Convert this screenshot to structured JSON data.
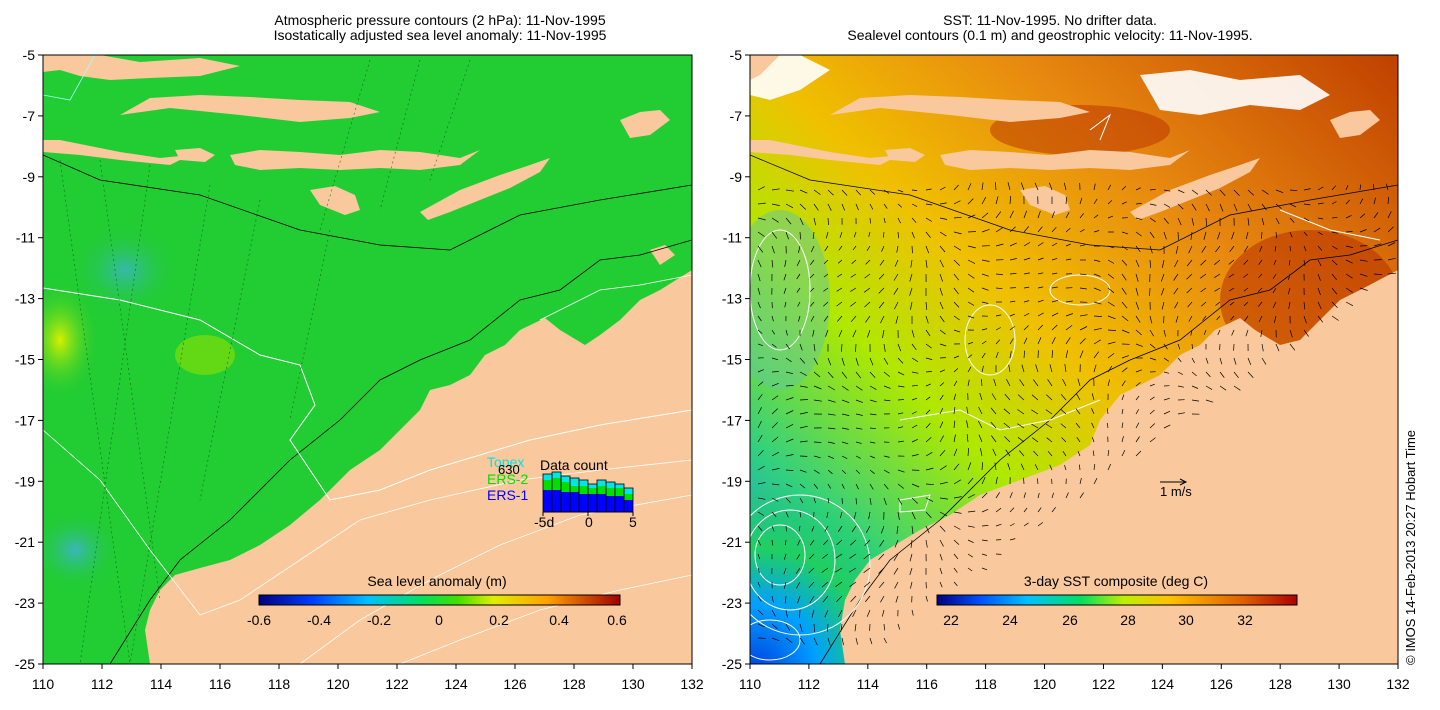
{
  "left_panel": {
    "title_line1": "Atmospheric pressure contours (2 hPa): 11-Nov-1995",
    "title_line2": "Isostatically adjusted sea level anomaly: 11-Nov-1995",
    "colorbar": {
      "title": "Sea level anomaly (m)",
      "ticks": [
        "-0.6",
        "-0.4",
        "-0.2",
        "0",
        "0.2",
        "0.4",
        "0.6"
      ]
    },
    "data_count": {
      "title": "Data count",
      "count": "630",
      "legend": [
        {
          "label": "Topex",
          "color": "#00e5e5"
        },
        {
          "label": "ERS-2",
          "color": "#00e000"
        },
        {
          "label": "ERS-1",
          "color": "#0000ff"
        }
      ],
      "x_ticks": [
        "-5d",
        "0",
        "5"
      ]
    }
  },
  "right_panel": {
    "title_line1": "SST: 11-Nov-1995. No drifter data.",
    "title_line2": "Sealevel contours (0.1 m) and geostrophic velocity: 11-Nov-1995.",
    "colorbar": {
      "title": "3-day SST composite (deg C)",
      "ticks": [
        "22",
        "24",
        "26",
        "28",
        "30",
        "32"
      ]
    },
    "velocity_scale": "1 m/s"
  },
  "axes": {
    "x_ticks": [
      "110",
      "112",
      "114",
      "116",
      "118",
      "120",
      "122",
      "124",
      "126",
      "128",
      "130",
      "132"
    ],
    "y_ticks": [
      "-5",
      "-7",
      "-9",
      "-11",
      "-13",
      "-15",
      "-17",
      "-19",
      "-21",
      "-23",
      "-25"
    ]
  },
  "credit": "© IMOS 14-Feb-2013 20:27 Hobart Time",
  "colors": {
    "land": "#f9c89c",
    "ocean_left": "#22cc33",
    "sst_warm": "#e07a14"
  }
}
